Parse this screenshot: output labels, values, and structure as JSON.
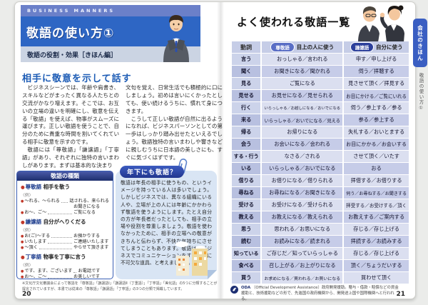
{
  "left_page": {
    "eyebrow": "BUSINESS MANNERS",
    "title": "敬語の使い方①",
    "subtitle": "敬語の役割・効果［きほん編］",
    "section_heading": "相手に敬意を示して話す",
    "body": {
      "col1_p1": "ビジネスシーンでは、年齢や肩書き、スキルなどがまったく異なる人たちとの交流がかなり増えます。そこでは、お互いの立場の違いを明確にし、敬意を伝える「敬語」を使えば、物事がスムーズに運びます。正しい敬語を使うことで、自分のために貴重な時間を割いてくれている相手に敬意を示すのです。",
      "col1_p2": "敬語には「尊敬語」「謙譲語」「丁寧語」があり、それぞれに独特の言いまわしがあります。まずは基本的な決まり",
      "col2_p1": "文句を覚え、日常生活でも積極的に口にしましょう。初めは言いにくかったとしても、使い続けるうちに、慣れて身につきます。",
      "col2_p2": "こうして正しい敬語が自然に出るようになれば、ビジネスパーソンとしての第一歩はしっかり踏み出せたといえるでしょう。敬語独特の言いまわしや響きなどに親しむうちに日本語の美しさにも、すぐに気づくはずです。"
    },
    "keigo_types_box": {
      "title": "敬語の種類",
      "example_label": "〈例〉",
      "groups": [
        {
          "name": "尊敬語",
          "desc": "相手を敬う",
          "items": [
            {
              "pattern": "～れる、～られる",
              "example": "話される、来られる"
            },
            {
              "pattern": "お～、ご～",
              "example": "お聞きになる\nご覧になる"
            }
          ]
        },
        {
          "name": "謙譲語",
          "desc": "自分がへりくだる",
          "items": [
            {
              "pattern": "お(ご)～する",
              "example": "お預かりする"
            },
            {
              "pattern": "いたします",
              "example": "ご連絡いたします"
            },
            {
              "pattern": "～頂く",
              "example": "やらせて頂きます"
            }
          ]
        },
        {
          "name": "丁寧語",
          "desc": "物事を丁寧に言う",
          "items": [
            {
              "pattern": "です、ます、ございます",
              "example": "お電話です"
            },
            {
              "pattern": "お～、ご～",
              "example": "お美しいです"
            }
          ]
        }
      ]
    },
    "column_box": {
      "title": "年下にも敬語？",
      "body": "敬語は年長の相手に使うもの、というイメージを持っている人は多いでしょう。しかしビジネスでは、異なる組織にいる人や、立場が上の人には年齢にかかわらず敬語を使うようにします。たとえ自分の方が年長者だったとしても、相手の立場や役割を尊重しましょう。敬語を使わなかったために、相手の立場への敬意がきちんと伝わらず、不快な気持ちにさせてしまうこともあります。敬語は、ビジネスでコミュニケーションをするために不可欠な道具、と考えましょう。"
    },
    "footnote": "※文化庁文化審議会によって敬語を「尊敬語」「謙譲語Ⅰ」「謙譲語Ⅱ（丁重語）」「丁寧語」「美化語」の5つに分類することが提言されていますが、本書では従来の「尊敬語」「謙譲語」「丁寧語」の3つの分類で掲載しています。",
    "page_number": "20"
  },
  "right_page": {
    "title": "よく使われる敬語一覧",
    "table": {
      "col_verb": "動詞",
      "col_sonkeigo_badge": "尊敬語",
      "col_sonkeigo_label": "目上の人に使う",
      "col_kenjougo_badge": "謙譲語",
      "col_kenjougo_label": "自分に使う",
      "rows": [
        {
          "verb": "言う",
          "sonkeigo": "おっしゃる／言われる",
          "kenjougo": "申す／申し上げる"
        },
        {
          "verb": "聞く",
          "sonkeigo": "お聞きになる／聞かれる",
          "kenjougo": "伺う／拝聴する"
        },
        {
          "verb": "見る",
          "sonkeigo": "ご覧になる",
          "kenjougo": "見させて頂く／拝見する"
        },
        {
          "verb": "見せる",
          "sonkeigo": "お見せになる／見せられる",
          "kenjougo": "お目にかける／ご覧にいれる"
        },
        {
          "verb": "行く",
          "sonkeigo": "いらっしゃる／お越しになる／おいでになる",
          "kenjougo": "伺う／参上する／参る"
        },
        {
          "verb": "来る",
          "sonkeigo": "いらっしゃる／おいでになる／見える",
          "kenjougo": "参る／参上する"
        },
        {
          "verb": "帰る",
          "sonkeigo": "お帰りになる",
          "kenjougo": "失礼する／おいとまする"
        },
        {
          "verb": "会う",
          "sonkeigo": "お会いになる／会われる",
          "kenjougo": "お目にかかる／お会いする"
        },
        {
          "verb": "する・行う",
          "sonkeigo": "なさる／される",
          "kenjougo": "させて頂く／いたす"
        },
        {
          "verb": "いる",
          "sonkeigo": "いらっしゃる／おいでになる",
          "kenjougo": "おる"
        },
        {
          "verb": "借りる",
          "sonkeigo": "お借りになる／借りられる",
          "kenjougo": "拝借する／お借りする"
        },
        {
          "verb": "尋ねる",
          "sonkeigo": "お尋ねになる／お聞きになる",
          "kenjougo": "伺う／お尋ねする／お聞きする"
        },
        {
          "verb": "受ける",
          "sonkeigo": "お受けになる／受けられる",
          "kenjougo": "拝受する／お受けする／頂く"
        },
        {
          "verb": "教える",
          "sonkeigo": "お教えになる／教えられる",
          "kenjougo": "お教えする／ご案内する"
        },
        {
          "verb": "思う",
          "sonkeigo": "思われる／お思いになる",
          "kenjougo": "存じる／存じ上げる"
        },
        {
          "verb": "読む",
          "sonkeigo": "お読みになる／読まれる",
          "kenjougo": "拝読する／お読みする"
        },
        {
          "verb": "知っている",
          "sonkeigo": "ご存じだ／知っていらっしゃる",
          "kenjougo": "存じる／存じ上げる"
        },
        {
          "verb": "食べる",
          "sonkeigo": "召し上がる／お上がりになる",
          "kenjougo": "頂く／ちょうだいする"
        },
        {
          "verb": "買う",
          "sonkeigo": "お求めになる／買われる／お買いになる",
          "kenjougo": "買わせて頂く"
        }
      ]
    },
    "footer_term": "ODA",
    "footer_def": "〔Official Development Assistance〕政府開発援助。贈与・借款・賠償などの資金援助と、技術援助などの形で、先進国の政府機関から、開発途上国や国際機関へと行われる。",
    "page_number": "21"
  },
  "side_tab": {
    "chapter": "会社のきほん",
    "section": "敬語の使い方①"
  },
  "colors": {
    "accent_blue": "#2e66c4",
    "eyebrow_bg": "#6b80c9",
    "subtitle_bg": "#cbd4e3",
    "box_border": "#3a5fb5",
    "column_box_bg": "#d9e5f4",
    "pill_sonkeigo": "#5a6ec5",
    "pill_kenjougo": "#2c3f9b",
    "row_light": "#dbdff0",
    "row_dark": "#c6cce8",
    "tab_bg": "#3a5ec2"
  }
}
